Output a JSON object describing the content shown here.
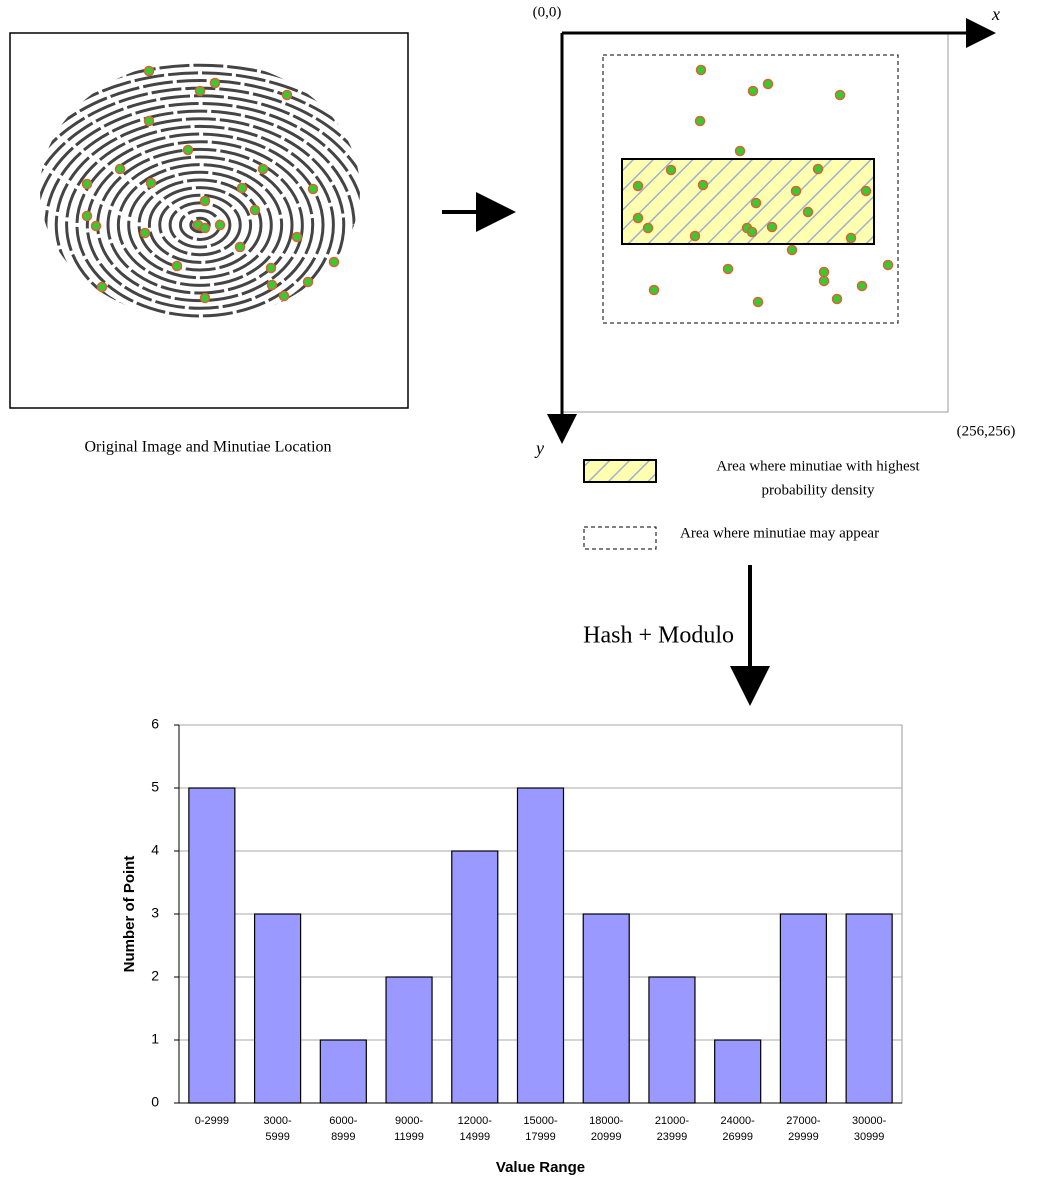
{
  "diagram": {
    "caption": "Original Image and Minutiae Location",
    "origin_label": "(0,0)",
    "x_axis_label": "x",
    "y_axis_label": "y",
    "corner_label": "(256,256)",
    "legend": [
      {
        "lines": [
          "Area where minutiae with highest",
          "probability density"
        ]
      },
      {
        "lines": [
          "Area where minutiae may appear"
        ]
      }
    ],
    "transform_label": "Hash + Modulo"
  },
  "chart_data": {
    "type": "bar",
    "x_label": "Value Range",
    "y_label": "Number of Point",
    "categories": [
      [
        "0-2999"
      ],
      [
        "3000-",
        "5999"
      ],
      [
        "6000-",
        "8999"
      ],
      [
        "9000-",
        "11999"
      ],
      [
        "12000-",
        "14999"
      ],
      [
        "15000-",
        "17999"
      ],
      [
        "18000-",
        "20999"
      ],
      [
        "21000-",
        "23999"
      ],
      [
        "24000-",
        "26999"
      ],
      [
        "27000-",
        "29999"
      ],
      [
        "30000-",
        "30999"
      ]
    ],
    "values": [
      5,
      3,
      1,
      2,
      4,
      5,
      3,
      2,
      1,
      3,
      3
    ],
    "color": "#9999ff",
    "ylim": [
      0,
      6
    ],
    "yticks": [
      0,
      1,
      2,
      3,
      4,
      5,
      6
    ],
    "grid": true
  }
}
